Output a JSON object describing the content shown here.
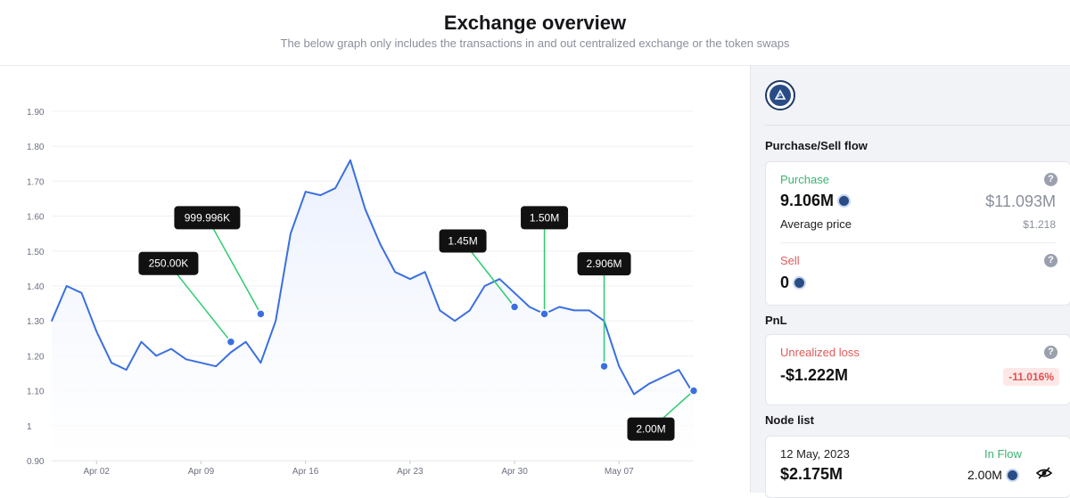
{
  "header": {
    "title": "Exchange overview",
    "subtitle": "The below graph only includes the transactions in and out centralized exchange or the token swaps"
  },
  "colors": {
    "line": "#3b6fe0",
    "fill": "#eaf0fd",
    "annotation": "#2ecc71",
    "tooltip_bg": "#111111"
  },
  "chart_data": {
    "type": "line",
    "title": "",
    "xlabel": "",
    "ylabel": "",
    "ylim": [
      0.9,
      1.9
    ],
    "y_ticks": [
      "0.90",
      "1",
      "1.10",
      "1.20",
      "1.30",
      "1.40",
      "1.50",
      "1.60",
      "1.70",
      "1.80",
      "1.90"
    ],
    "x_ticks": [
      "Apr 02",
      "Apr 09",
      "Apr 16",
      "Apr 23",
      "Apr 30",
      "May 07"
    ],
    "x": [
      "Mar 30",
      "Mar 31",
      "Apr 01",
      "Apr 02",
      "Apr 03",
      "Apr 04",
      "Apr 05",
      "Apr 06",
      "Apr 07",
      "Apr 08",
      "Apr 09",
      "Apr 10",
      "Apr 11",
      "Apr 12",
      "Apr 13",
      "Apr 14",
      "Apr 15",
      "Apr 16",
      "Apr 17",
      "Apr 18",
      "Apr 19",
      "Apr 20",
      "Apr 21",
      "Apr 22",
      "Apr 23",
      "Apr 24",
      "Apr 25",
      "Apr 26",
      "Apr 27",
      "Apr 28",
      "Apr 29",
      "Apr 30",
      "May 01",
      "May 02",
      "May 03",
      "May 04",
      "May 05",
      "May 06",
      "May 07",
      "May 08",
      "May 09",
      "May 10",
      "May 11",
      "May 12"
    ],
    "values": [
      1.3,
      1.4,
      1.38,
      1.27,
      1.18,
      1.16,
      1.24,
      1.2,
      1.22,
      1.19,
      1.18,
      1.17,
      1.21,
      1.24,
      1.18,
      1.3,
      1.55,
      1.67,
      1.66,
      1.68,
      1.76,
      1.62,
      1.52,
      1.44,
      1.42,
      1.44,
      1.33,
      1.3,
      1.33,
      1.4,
      1.42,
      1.38,
      1.34,
      1.32,
      1.34,
      1.33,
      1.33,
      1.3,
      1.17,
      1.09,
      1.12,
      1.14,
      1.16,
      1.09
    ],
    "grid": true,
    "legend": "none",
    "annotations": [
      {
        "label": "250.00K",
        "x": "Apr 11",
        "y": 1.24
      },
      {
        "label": "999.996K",
        "x": "Apr 13",
        "y": 1.32
      },
      {
        "label": "1.45M",
        "x": "Apr 30",
        "y": 1.34
      },
      {
        "label": "1.50M",
        "x": "May 02",
        "y": 1.32
      },
      {
        "label": "2.906M",
        "x": "May 06",
        "y": 1.17
      },
      {
        "label": "2.00M",
        "x": "May 12",
        "y": 1.1
      }
    ]
  },
  "sidebar": {
    "purchase_sell_title": "Purchase/Sell flow",
    "purchase": {
      "label": "Purchase",
      "amount": "9.106M",
      "usd": "$11.093M",
      "avg_label": "Average price",
      "avg_value": "$1.218"
    },
    "sell": {
      "label": "Sell",
      "amount": "0"
    },
    "pnl_title": "PnL",
    "pnl": {
      "label": "Unrealized loss",
      "amount": "-$1.222M",
      "pct": "-11.016%"
    },
    "node_title": "Node list",
    "node": {
      "date": "12 May, 2023",
      "flow": "In Flow",
      "amount": "$2.175M",
      "tokens": "2.00M"
    },
    "help_glyph": "?"
  }
}
